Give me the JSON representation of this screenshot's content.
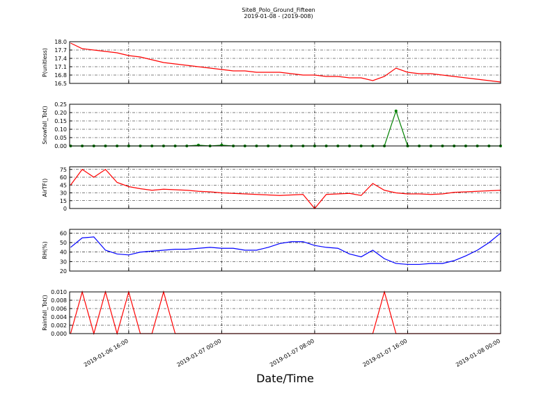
{
  "chart_data": [
    {
      "type": "line",
      "title": "Site8_Polo_Ground_Fifteen",
      "subtitle": "2019-01-08 - (2019-008)",
      "y_label": "P(unitless)",
      "color": "#ff0000",
      "grid": true,
      "x": [
        "2019-01-06 11:00",
        "2019-01-06 12:00",
        "2019-01-06 13:00",
        "2019-01-06 14:00",
        "2019-01-06 15:00",
        "2019-01-06 16:00",
        "2019-01-06 17:00",
        "2019-01-06 18:00",
        "2019-01-06 19:00",
        "2019-01-06 20:00",
        "2019-01-06 21:00",
        "2019-01-06 22:00",
        "2019-01-06 23:00",
        "2019-01-07 00:00",
        "2019-01-07 01:00",
        "2019-01-07 02:00",
        "2019-01-07 03:00",
        "2019-01-07 04:00",
        "2019-01-07 05:00",
        "2019-01-07 06:00",
        "2019-01-07 07:00",
        "2019-01-07 08:00",
        "2019-01-07 09:00",
        "2019-01-07 10:00",
        "2019-01-07 11:00",
        "2019-01-07 12:00",
        "2019-01-07 13:00",
        "2019-01-07 14:00",
        "2019-01-07 15:00",
        "2019-01-07 16:00",
        "2019-01-07 17:00",
        "2019-01-07 18:00",
        "2019-01-07 19:00",
        "2019-01-07 20:00",
        "2019-01-07 21:00",
        "2019-01-07 22:00",
        "2019-01-07 23:00",
        "2019-01-08 00:00"
      ],
      "values": [
        17.95,
        17.75,
        17.7,
        17.65,
        17.6,
        17.5,
        17.45,
        17.35,
        17.25,
        17.2,
        17.15,
        17.1,
        17.05,
        17.0,
        16.95,
        16.95,
        16.9,
        16.9,
        16.9,
        16.85,
        16.8,
        16.8,
        16.75,
        16.75,
        16.7,
        16.7,
        16.6,
        16.75,
        17.05,
        16.9,
        16.85,
        16.85,
        16.8,
        16.75,
        16.7,
        16.65,
        16.6,
        16.55
      ],
      "xlim": [
        "2019-01-06 10:55",
        "2019-01-08 00:00"
      ],
      "xticks": [
        "2019-01-06 16:00",
        "2019-01-07 00:00",
        "2019-01-07 08:00",
        "2019-01-07 16:00",
        "2019-01-08 00:00"
      ],
      "ylim": [
        16.5,
        18.0
      ],
      "yticks": [
        16.5,
        16.8,
        17.1,
        17.4,
        17.7,
        {
          "value": 18,
          "label": "18.0"
        }
      ]
    },
    {
      "type": "line",
      "y_label": "Snowfall_Tot()",
      "color": "#008000",
      "marker": "o",
      "grid": true,
      "x": [
        "2019-01-06 11:00",
        "2019-01-06 12:00",
        "2019-01-06 13:00",
        "2019-01-06 14:00",
        "2019-01-06 15:00",
        "2019-01-06 16:00",
        "2019-01-06 17:00",
        "2019-01-06 18:00",
        "2019-01-06 19:00",
        "2019-01-06 20:00",
        "2019-01-06 21:00",
        "2019-01-06 22:00",
        "2019-01-06 23:00",
        "2019-01-07 00:00",
        "2019-01-07 01:00",
        "2019-01-07 02:00",
        "2019-01-07 03:00",
        "2019-01-07 04:00",
        "2019-01-07 05:00",
        "2019-01-07 06:00",
        "2019-01-07 07:00",
        "2019-01-07 08:00",
        "2019-01-07 09:00",
        "2019-01-07 10:00",
        "2019-01-07 11:00",
        "2019-01-07 12:00",
        "2019-01-07 13:00",
        "2019-01-07 14:00",
        "2019-01-07 15:00",
        "2019-01-07 16:00",
        "2019-01-07 17:00",
        "2019-01-07 18:00",
        "2019-01-07 19:00",
        "2019-01-07 20:00",
        "2019-01-07 21:00",
        "2019-01-07 22:00",
        "2019-01-07 23:00",
        "2019-01-08 00:00"
      ],
      "values": [
        0,
        0,
        0,
        0,
        0,
        0,
        0,
        0,
        0,
        0,
        0,
        0.005,
        0,
        0.005,
        0,
        0,
        0,
        0,
        0,
        0,
        0,
        0,
        0,
        0,
        0,
        0,
        0,
        0,
        0.21,
        0,
        0,
        0,
        0,
        0,
        0,
        0,
        0,
        0
      ],
      "xlim": [
        "2019-01-06 10:55",
        "2019-01-08 00:00"
      ],
      "xticks": [
        "2019-01-06 16:00",
        "2019-01-07 00:00",
        "2019-01-07 08:00",
        "2019-01-07 16:00",
        "2019-01-08 00:00"
      ],
      "ylim": [
        0,
        0.25
      ],
      "yticks": [
        {
          "value": 0,
          "label": "0.00"
        },
        0.05,
        {
          "value": 0.1,
          "label": "0.10"
        },
        0.15,
        {
          "value": 0.2,
          "label": "0.20"
        },
        0.25
      ]
    },
    {
      "type": "line",
      "y_label": "AirTF()",
      "color": "#ff0000",
      "grid": true,
      "x": [
        "2019-01-06 11:00",
        "2019-01-06 12:00",
        "2019-01-06 13:00",
        "2019-01-06 14:00",
        "2019-01-06 15:00",
        "2019-01-06 16:00",
        "2019-01-06 17:00",
        "2019-01-06 18:00",
        "2019-01-06 19:00",
        "2019-01-06 20:00",
        "2019-01-06 21:00",
        "2019-01-06 22:00",
        "2019-01-06 23:00",
        "2019-01-07 00:00",
        "2019-01-07 01:00",
        "2019-01-07 02:00",
        "2019-01-07 03:00",
        "2019-01-07 04:00",
        "2019-01-07 05:00",
        "2019-01-07 06:00",
        "2019-01-07 07:00",
        "2019-01-07 08:00",
        "2019-01-07 09:00",
        "2019-01-07 10:00",
        "2019-01-07 11:00",
        "2019-01-07 12:00",
        "2019-01-07 13:00",
        "2019-01-07 14:00",
        "2019-01-07 15:00",
        "2019-01-07 16:00",
        "2019-01-07 17:00",
        "2019-01-07 18:00",
        "2019-01-07 19:00",
        "2019-01-07 20:00",
        "2019-01-07 21:00",
        "2019-01-07 22:00",
        "2019-01-07 23:00",
        "2019-01-08 00:00"
      ],
      "values": [
        45,
        75,
        60,
        75,
        50,
        42,
        38,
        35,
        37,
        36,
        35,
        33,
        32,
        30,
        29,
        28,
        27,
        26,
        25,
        26,
        27,
        0,
        27,
        28,
        29,
        25,
        48,
        35,
        30,
        28,
        28,
        27,
        28,
        31,
        32,
        33,
        34,
        35
      ],
      "xlim": [
        "2019-01-06 10:55",
        "2019-01-08 00:00"
      ],
      "xticks": [
        "2019-01-06 16:00",
        "2019-01-07 00:00",
        "2019-01-07 08:00",
        "2019-01-07 16:00",
        "2019-01-08 00:00"
      ],
      "ylim": [
        0,
        80
      ],
      "yticks": [
        0,
        15,
        30,
        45,
        60,
        75
      ]
    },
    {
      "type": "line",
      "y_label": "RH(%)",
      "color": "#0000ff",
      "grid": true,
      "x": [
        "2019-01-06 11:00",
        "2019-01-06 12:00",
        "2019-01-06 13:00",
        "2019-01-06 14:00",
        "2019-01-06 15:00",
        "2019-01-06 16:00",
        "2019-01-06 17:00",
        "2019-01-06 18:00",
        "2019-01-06 19:00",
        "2019-01-06 20:00",
        "2019-01-06 21:00",
        "2019-01-06 22:00",
        "2019-01-06 23:00",
        "2019-01-07 00:00",
        "2019-01-07 01:00",
        "2019-01-07 02:00",
        "2019-01-07 03:00",
        "2019-01-07 04:00",
        "2019-01-07 05:00",
        "2019-01-07 06:00",
        "2019-01-07 07:00",
        "2019-01-07 08:00",
        "2019-01-07 09:00",
        "2019-01-07 10:00",
        "2019-01-07 11:00",
        "2019-01-07 12:00",
        "2019-01-07 13:00",
        "2019-01-07 14:00",
        "2019-01-07 15:00",
        "2019-01-07 16:00",
        "2019-01-07 17:00",
        "2019-01-07 18:00",
        "2019-01-07 19:00",
        "2019-01-07 20:00",
        "2019-01-07 21:00",
        "2019-01-07 22:00",
        "2019-01-07 23:00",
        "2019-01-08 00:00"
      ],
      "values": [
        45,
        55,
        56,
        42,
        38,
        37,
        40,
        41,
        42,
        43,
        43,
        44,
        45,
        44,
        44,
        42,
        42,
        45,
        49,
        51,
        51,
        47,
        45,
        44,
        38,
        35,
        42,
        33,
        28,
        27,
        27,
        28,
        28,
        31,
        36,
        42,
        50,
        60
      ],
      "xlim": [
        "2019-01-06 10:55",
        "2019-01-08 00:00"
      ],
      "xticks": [
        "2019-01-06 16:00",
        "2019-01-07 00:00",
        "2019-01-07 08:00",
        "2019-01-07 16:00",
        "2019-01-08 00:00"
      ],
      "ylim": [
        20,
        64
      ],
      "yticks": [
        20,
        30,
        40,
        50,
        60
      ]
    },
    {
      "type": "line",
      "y_label": "Rainfall_Tot()",
      "x_label": "Date/Time",
      "color": "#ff0000",
      "grid": true,
      "x": [
        "2019-01-06 11:00",
        "2019-01-06 12:00",
        "2019-01-06 13:00",
        "2019-01-06 14:00",
        "2019-01-06 15:00",
        "2019-01-06 16:00",
        "2019-01-06 17:00",
        "2019-01-06 18:00",
        "2019-01-06 19:00",
        "2019-01-06 20:00",
        "2019-01-06 21:00",
        "2019-01-06 22:00",
        "2019-01-06 23:00",
        "2019-01-07 00:00",
        "2019-01-07 01:00",
        "2019-01-07 02:00",
        "2019-01-07 03:00",
        "2019-01-07 04:00",
        "2019-01-07 05:00",
        "2019-01-07 06:00",
        "2019-01-07 07:00",
        "2019-01-07 08:00",
        "2019-01-07 09:00",
        "2019-01-07 10:00",
        "2019-01-07 11:00",
        "2019-01-07 12:00",
        "2019-01-07 13:00",
        "2019-01-07 14:00",
        "2019-01-07 15:00",
        "2019-01-07 16:00",
        "2019-01-07 17:00",
        "2019-01-07 18:00",
        "2019-01-07 19:00",
        "2019-01-07 20:00",
        "2019-01-07 21:00",
        "2019-01-07 22:00",
        "2019-01-07 23:00",
        "2019-01-08 00:00"
      ],
      "values": [
        0,
        0.01,
        0,
        0.01,
        0,
        0.01,
        0,
        0,
        0.01,
        0,
        0,
        0,
        0,
        0,
        0,
        0,
        0,
        0,
        0,
        0,
        0,
        0,
        0,
        0,
        0,
        0,
        0,
        0.01,
        0,
        0,
        0,
        0,
        0,
        0,
        0,
        0,
        0,
        0
      ],
      "xlim": [
        "2019-01-06 10:55",
        "2019-01-08 00:00"
      ],
      "xticks": [
        "2019-01-06 16:00",
        "2019-01-07 00:00",
        "2019-01-07 08:00",
        "2019-01-07 16:00",
        "2019-01-08 00:00"
      ],
      "ylim": [
        0,
        0.01
      ],
      "yticks": [
        {
          "value": 0,
          "label": "0.000"
        },
        0.002,
        0.004,
        0.006,
        0.008,
        {
          "value": 0.01,
          "label": "0.010"
        }
      ]
    }
  ]
}
